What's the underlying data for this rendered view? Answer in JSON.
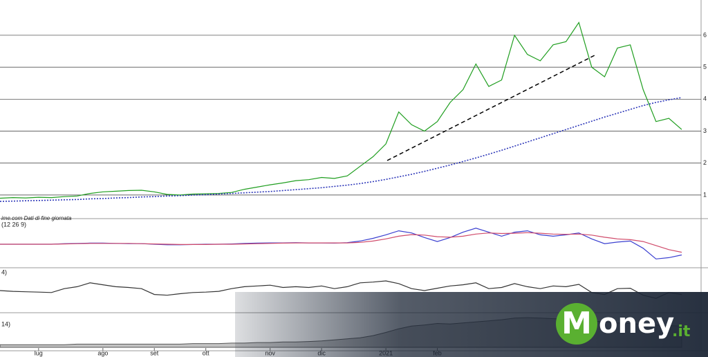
{
  "chart_data": [
    {
      "type": "line",
      "source": "ime.com Dati di fine giornata",
      "categories": [
        null,
        null,
        null,
        "lug",
        null,
        null,
        null,
        null,
        "ago",
        null,
        null,
        null,
        "set",
        null,
        null,
        null,
        "ott",
        null,
        null,
        null,
        null,
        "nov",
        null,
        null,
        null,
        "dic",
        null,
        null,
        null,
        null,
        "2021",
        null,
        null,
        null,
        "feb",
        null,
        null,
        null,
        null,
        null,
        null,
        null,
        null,
        null,
        null,
        null,
        null,
        null,
        null,
        null,
        null,
        null,
        null,
        null
      ],
      "series": [
        {
          "color": "#1f9e1f",
          "style": "solid",
          "values": [
            0.9,
            0.92,
            0.91,
            0.93,
            0.92,
            0.95,
            0.97,
            1.05,
            1.1,
            1.12,
            1.14,
            1.15,
            1.1,
            1.02,
            1.0,
            1.03,
            1.04,
            1.05,
            1.08,
            1.18,
            1.25,
            1.32,
            1.38,
            1.45,
            1.48,
            1.55,
            1.52,
            1.6,
            1.9,
            2.2,
            2.6,
            3.6,
            3.2,
            3.0,
            3.3,
            3.9,
            4.3,
            5.1,
            4.4,
            4.6,
            6.0,
            5.4,
            5.2,
            5.7,
            5.8,
            6.4,
            5.0,
            4.7,
            5.6,
            5.7,
            4.3,
            3.3,
            3.4,
            3.05
          ]
        },
        {
          "color": "#2b35b8",
          "style": "dotted",
          "values": [
            0.8,
            0.81,
            0.82,
            0.83,
            0.84,
            0.85,
            0.86,
            0.88,
            0.89,
            0.91,
            0.92,
            0.94,
            0.95,
            0.97,
            0.98,
            1.0,
            1.01,
            1.03,
            1.05,
            1.07,
            1.09,
            1.11,
            1.14,
            1.17,
            1.2,
            1.23,
            1.27,
            1.31,
            1.36,
            1.42,
            1.49,
            1.57,
            1.65,
            1.74,
            1.84,
            1.94,
            2.05,
            2.16,
            2.28,
            2.4,
            2.53,
            2.66,
            2.79,
            2.92,
            3.05,
            3.18,
            3.31,
            3.44,
            3.56,
            3.68,
            3.8,
            3.9,
            3.98,
            4.05
          ]
        }
      ],
      "ylim": [
        0.5,
        6.8
      ],
      "yticks": [
        1,
        2,
        3,
        4,
        5,
        6
      ],
      "grid": true
    },
    {
      "type": "line",
      "title": "(12 26 9)",
      "ylim": [
        -0.8,
        0.8
      ],
      "series": [
        {
          "color": "#3a3fd0",
          "style": "solid",
          "values": [
            0,
            0,
            0,
            0,
            0,
            0.02,
            0.03,
            0.04,
            0.04,
            0.03,
            0.02,
            0.02,
            0,
            -0.02,
            -0.02,
            -0.01,
            0,
            0,
            0.01,
            0.03,
            0.04,
            0.05,
            0.05,
            0.06,
            0.05,
            0.05,
            0.04,
            0.06,
            0.12,
            0.22,
            0.35,
            0.5,
            0.42,
            0.25,
            0.1,
            0.25,
            0.45,
            0.6,
            0.45,
            0.3,
            0.45,
            0.5,
            0.35,
            0.3,
            0.35,
            0.42,
            0.2,
            0.02,
            0.08,
            0.12,
            -0.15,
            -0.55,
            -0.5,
            -0.4
          ]
        },
        {
          "color": "#d04a6a",
          "style": "solid",
          "values": [
            0,
            0,
            0,
            0,
            0,
            0.01,
            0.02,
            0.03,
            0.03,
            0.03,
            0.03,
            0.02,
            0.01,
            0,
            -0.01,
            -0.01,
            -0.01,
            0,
            0,
            0.01,
            0.02,
            0.03,
            0.04,
            0.05,
            0.05,
            0.05,
            0.05,
            0.05,
            0.07,
            0.12,
            0.2,
            0.3,
            0.36,
            0.34,
            0.28,
            0.26,
            0.3,
            0.38,
            0.42,
            0.4,
            0.41,
            0.43,
            0.41,
            0.38,
            0.37,
            0.38,
            0.34,
            0.26,
            0.2,
            0.17,
            0.1,
            -0.05,
            -0.2,
            -0.3
          ]
        }
      ]
    },
    {
      "type": "line",
      "title": "4)",
      "ylim": [
        0,
        100
      ],
      "series": [
        {
          "color": "#333333",
          "style": "solid",
          "values": [
            50,
            48,
            47,
            46,
            45,
            55,
            60,
            70,
            65,
            60,
            58,
            55,
            40,
            38,
            42,
            45,
            46,
            48,
            55,
            60,
            62,
            64,
            58,
            60,
            58,
            62,
            55,
            60,
            70,
            72,
            75,
            68,
            55,
            50,
            56,
            62,
            65,
            70,
            55,
            58,
            68,
            60,
            55,
            62,
            60,
            66,
            45,
            40,
            55,
            56,
            38,
            30,
            45,
            40
          ]
        }
      ]
    },
    {
      "type": "area",
      "title": "14)",
      "ylim": [
        0,
        60
      ],
      "series": [
        {
          "color": "#555555",
          "style": "solid",
          "values": [
            5,
            5,
            5,
            5,
            5,
            5,
            6,
            6,
            6,
            6,
            6,
            6,
            6,
            6,
            6,
            7,
            7,
            7,
            8,
            8,
            9,
            9,
            10,
            10,
            11,
            12,
            14,
            16,
            18,
            22,
            28,
            35,
            40,
            42,
            45,
            44,
            46,
            48,
            50,
            52,
            55,
            56,
            55,
            54,
            53,
            52,
            50,
            48,
            46,
            45,
            43,
            42,
            41,
            40
          ]
        }
      ]
    }
  ],
  "logo": {
    "initial": "M",
    "rest": "oney",
    "suffix": ".it"
  }
}
